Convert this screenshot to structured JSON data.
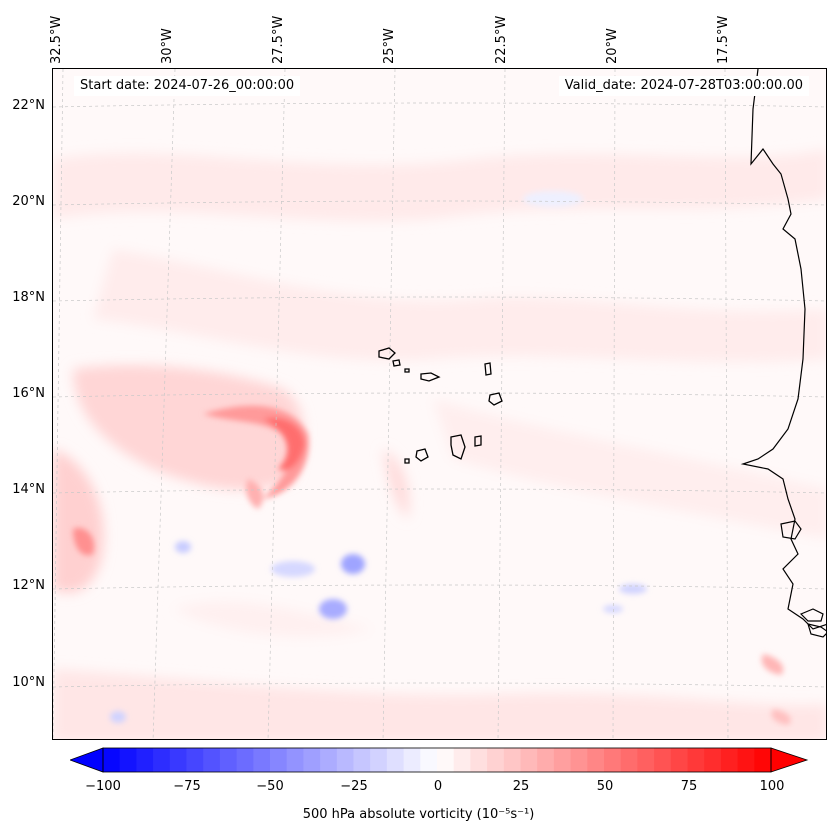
{
  "map": {
    "start_date": "Start date: 2024-07-26_00:00:00",
    "valid_date": "Valid_date: 2024-07-28T03:00:00.00",
    "lon_labels": [
      "32.5°W",
      "30°W",
      "27.5°W",
      "25°W",
      "22.5°W",
      "20°W",
      "17.5°W"
    ],
    "lat_labels": [
      "22°N",
      "20°N",
      "18°N",
      "16°N",
      "14°N",
      "12°N",
      "10°N"
    ],
    "extent": {
      "lon_min": -33.0,
      "lon_max": -15.5,
      "lat_min": 9.0,
      "lat_max": 22.7
    },
    "features": [
      "Cape Verde islands",
      "West African coastline"
    ]
  },
  "colorbar": {
    "label": "500 hPa absolute vorticity (10⁻⁵s⁻¹)",
    "ticks": [
      "−100",
      "−75",
      "−50",
      "−25",
      "0",
      "25",
      "50",
      "75",
      "100"
    ],
    "range": [
      -100,
      100
    ],
    "colors": {
      "min": "#0000ff",
      "mid": "#ffffff",
      "max": "#ff0000"
    },
    "extend": "both"
  }
}
